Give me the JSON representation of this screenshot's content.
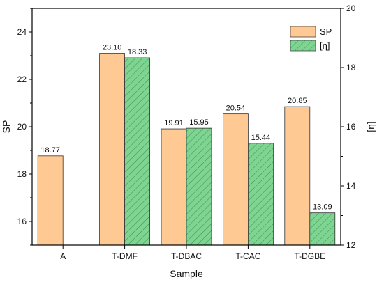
{
  "chart_data": {
    "type": "bar",
    "categories": [
      "A",
      "T-DMF",
      "T-DBAC",
      "T-CAC",
      "T-DGBE"
    ],
    "xlabel": "Sample",
    "ylabel": "SP",
    "y2label": "[η]",
    "ylim": [
      15,
      25
    ],
    "y2lim": [
      12,
      20
    ],
    "yticks": [
      16,
      18,
      20,
      22,
      24
    ],
    "y2ticks": [
      12,
      14,
      16,
      18,
      20
    ],
    "legend_position": "top-right",
    "series": [
      {
        "name": "SP",
        "axis": "left",
        "values": [
          18.77,
          23.1,
          19.91,
          20.54,
          20.85
        ],
        "labels": [
          "18.77",
          "23.10",
          "19.91",
          "20.54",
          "20.85"
        ],
        "color": "#FFC994",
        "pattern": "none"
      },
      {
        "name": "[η]",
        "axis": "right",
        "values": [
          null,
          18.33,
          15.95,
          15.44,
          13.09
        ],
        "labels": [
          "",
          "18.33",
          "15.95",
          "15.44",
          "13.09"
        ],
        "color": "#7ED491",
        "pattern": "diagonal-hatch"
      }
    ]
  }
}
